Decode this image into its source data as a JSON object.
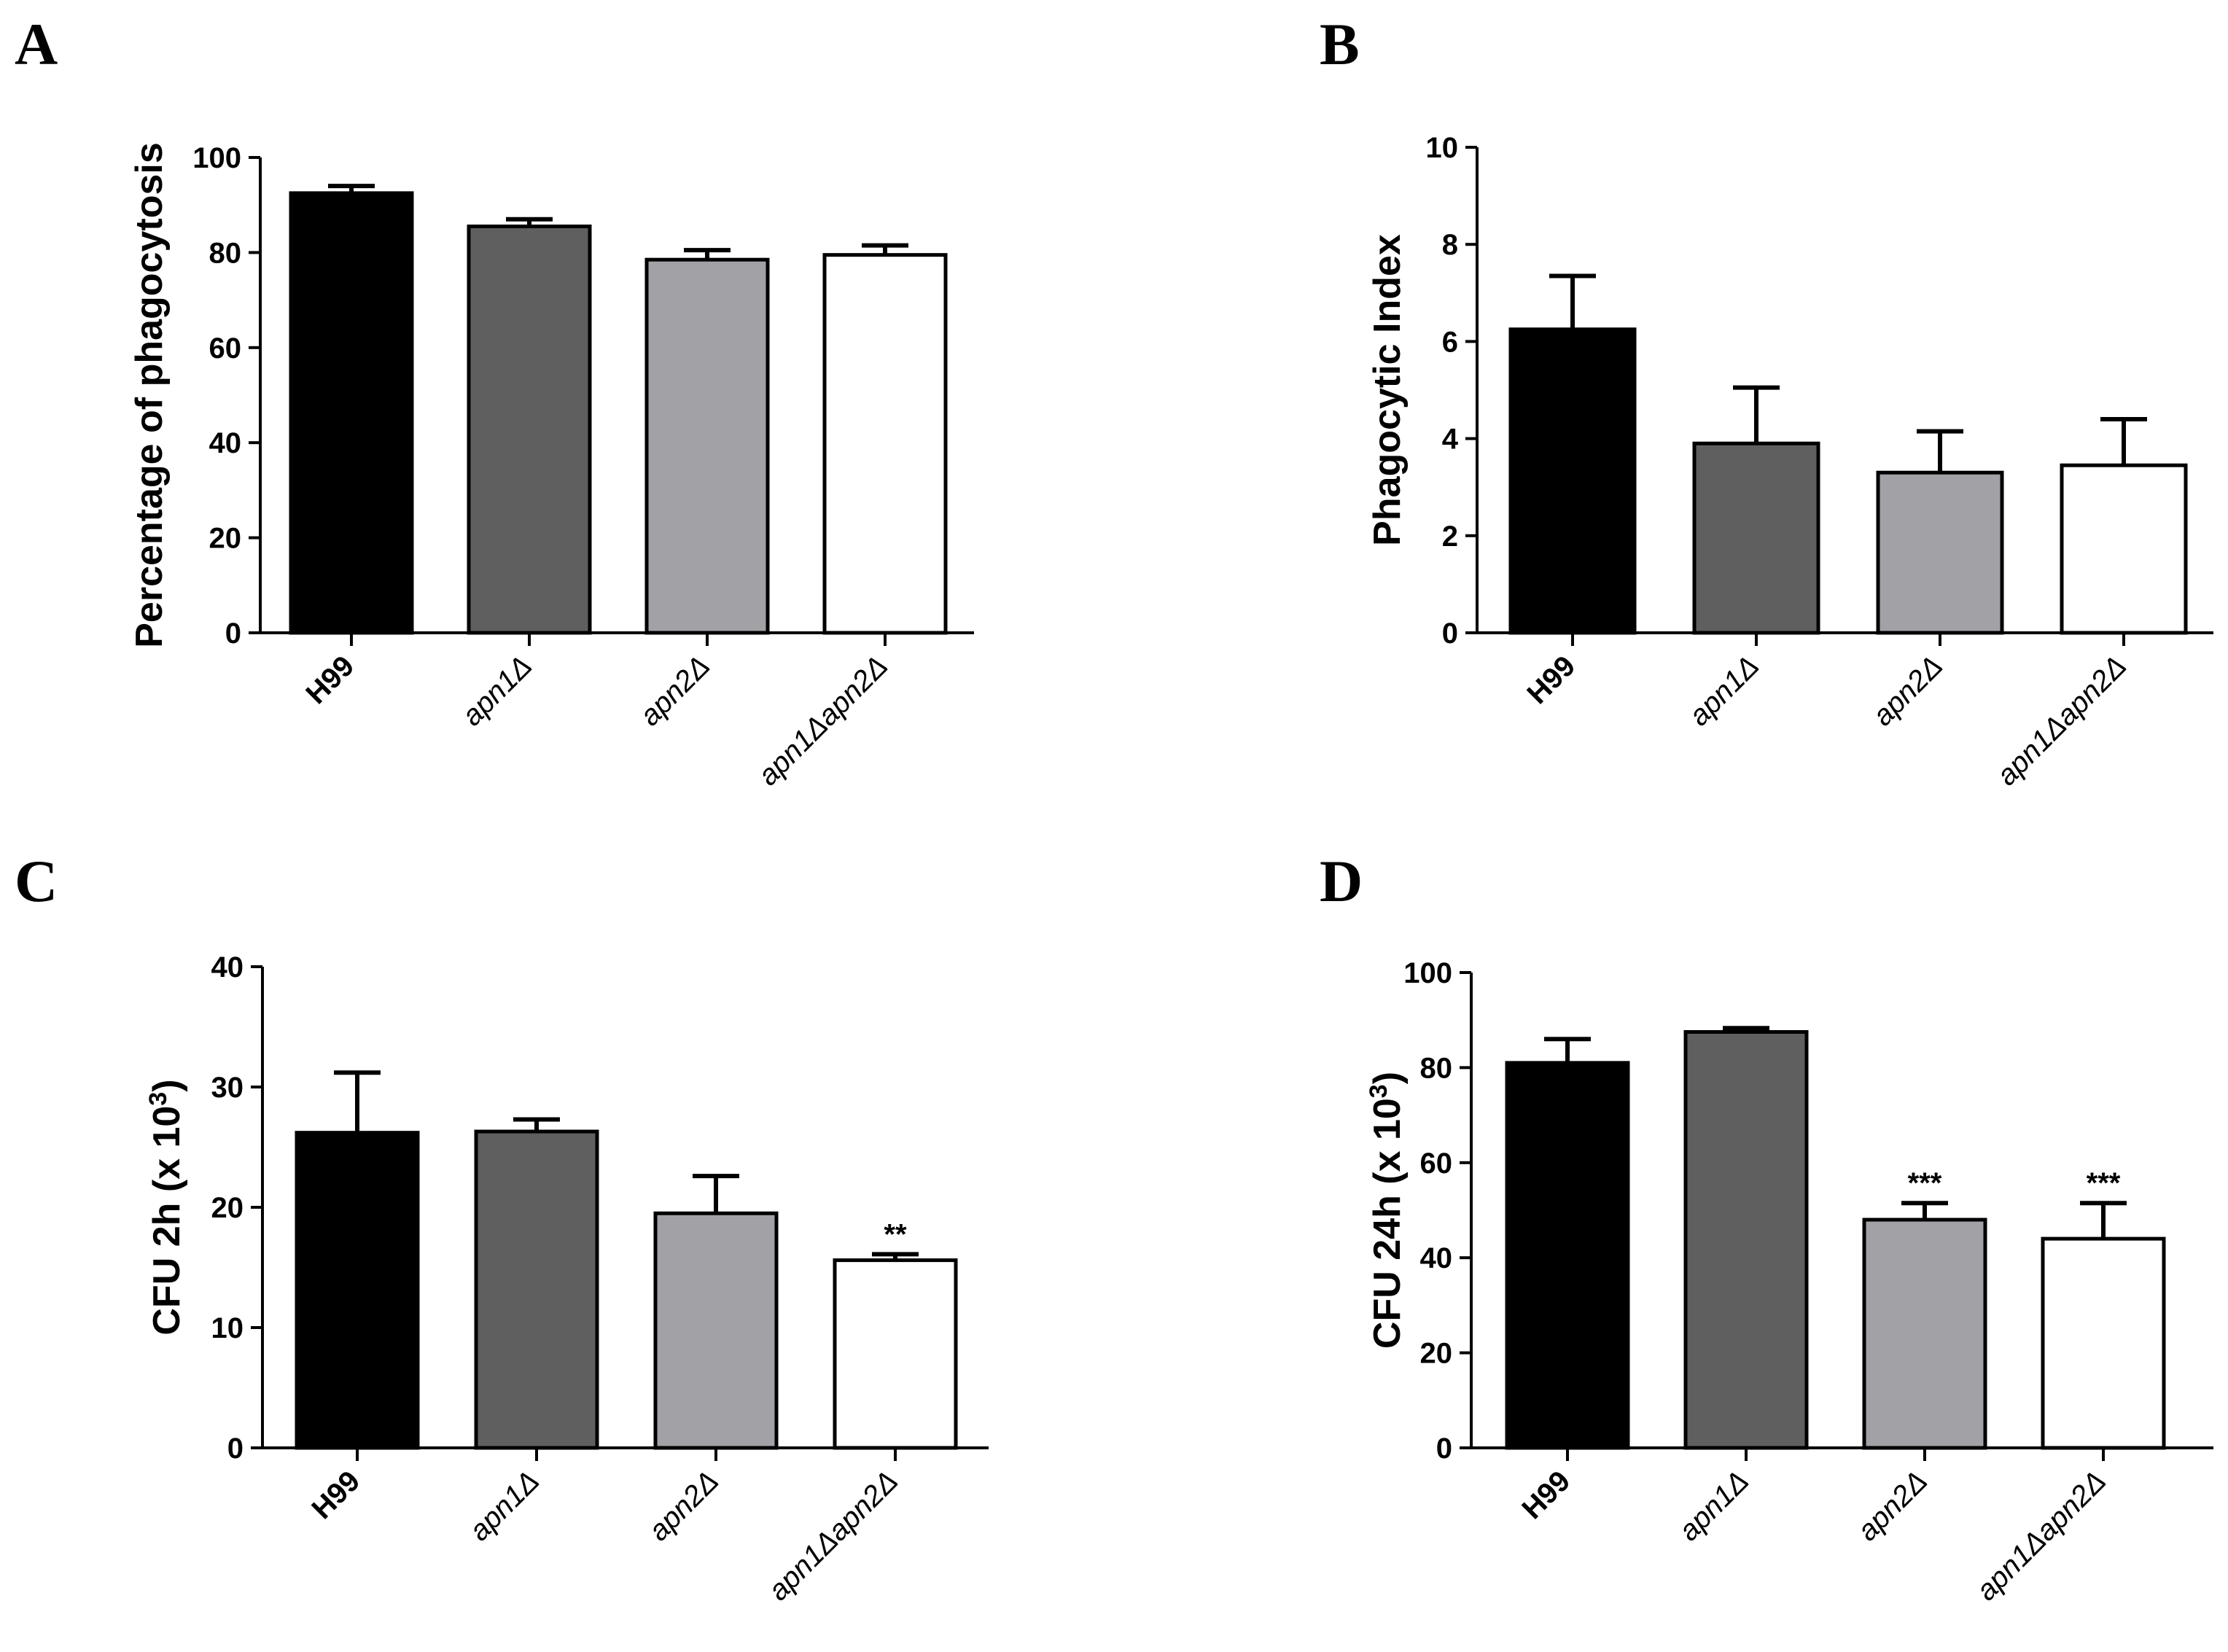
{
  "figure": {
    "panels": [
      "A",
      "B",
      "C",
      "D"
    ]
  },
  "chart_data": [
    {
      "panel": "A",
      "type": "bar",
      "title": "",
      "xlabel": "",
      "ylabel": "Percentage of phagocytosis",
      "ylim": [
        0,
        100
      ],
      "yticks": [
        0,
        20,
        40,
        60,
        80,
        100
      ],
      "categories": [
        "H99",
        "apn1Δ",
        "apn2Δ",
        "apn1Δapn2Δ"
      ],
      "values": [
        92.5,
        85.5,
        78.5,
        79.5
      ],
      "errors": [
        1.5,
        1.5,
        2.0,
        2.0
      ],
      "significance": [
        "",
        "",
        "",
        ""
      ],
      "colors": [
        "#000000",
        "#5f5f5f",
        "#a1a1a6",
        "#ffffff"
      ]
    },
    {
      "panel": "B",
      "type": "bar",
      "title": "",
      "xlabel": "",
      "ylabel": "Phagocytic Index",
      "ylim": [
        0,
        10
      ],
      "yticks": [
        0,
        2,
        4,
        6,
        8,
        10
      ],
      "categories": [
        "H99",
        "apn1Δ",
        "apn2Δ",
        "apn1Δapn2Δ"
      ],
      "values": [
        6.25,
        3.9,
        3.3,
        3.45
      ],
      "errors": [
        1.1,
        1.15,
        0.85,
        0.95
      ],
      "significance": [
        "",
        "",
        "",
        ""
      ],
      "colors": [
        "#000000",
        "#5f5f5f",
        "#a1a1a6",
        "#ffffff"
      ]
    },
    {
      "panel": "C",
      "type": "bar",
      "title": "",
      "xlabel": "",
      "ylabel": "CFU 2h (x 10",
      "ylabel_sup": "3",
      "ylabel_end": ")",
      "ylim": [
        0,
        40
      ],
      "yticks": [
        0,
        10,
        20,
        30,
        40
      ],
      "categories": [
        "H99",
        "apn1Δ",
        "apn2Δ",
        "apn1Δapn2Δ"
      ],
      "values": [
        26.2,
        26.3,
        19.5,
        15.6
      ],
      "errors": [
        5.0,
        1.0,
        3.1,
        0.5
      ],
      "significance": [
        "",
        "",
        "",
        "**"
      ],
      "colors": [
        "#000000",
        "#5f5f5f",
        "#a1a1a6",
        "#ffffff"
      ]
    },
    {
      "panel": "D",
      "type": "bar",
      "title": "",
      "xlabel": "",
      "ylabel": "CFU 24h (x 10",
      "ylabel_sup": "3",
      "ylabel_end": ")",
      "ylim": [
        0,
        100
      ],
      "yticks": [
        0,
        20,
        40,
        60,
        80,
        100
      ],
      "categories": [
        "H99",
        "apn1Δ",
        "apn2Δ",
        "apn1Δapn2Δ"
      ],
      "values": [
        81.0,
        87.5,
        48.0,
        44.0
      ],
      "errors": [
        5.0,
        0.8,
        3.5,
        7.5
      ],
      "significance": [
        "",
        "",
        "***",
        "***"
      ],
      "colors": [
        "#000000",
        "#5f5f5f",
        "#a1a1a6",
        "#ffffff"
      ]
    }
  ]
}
